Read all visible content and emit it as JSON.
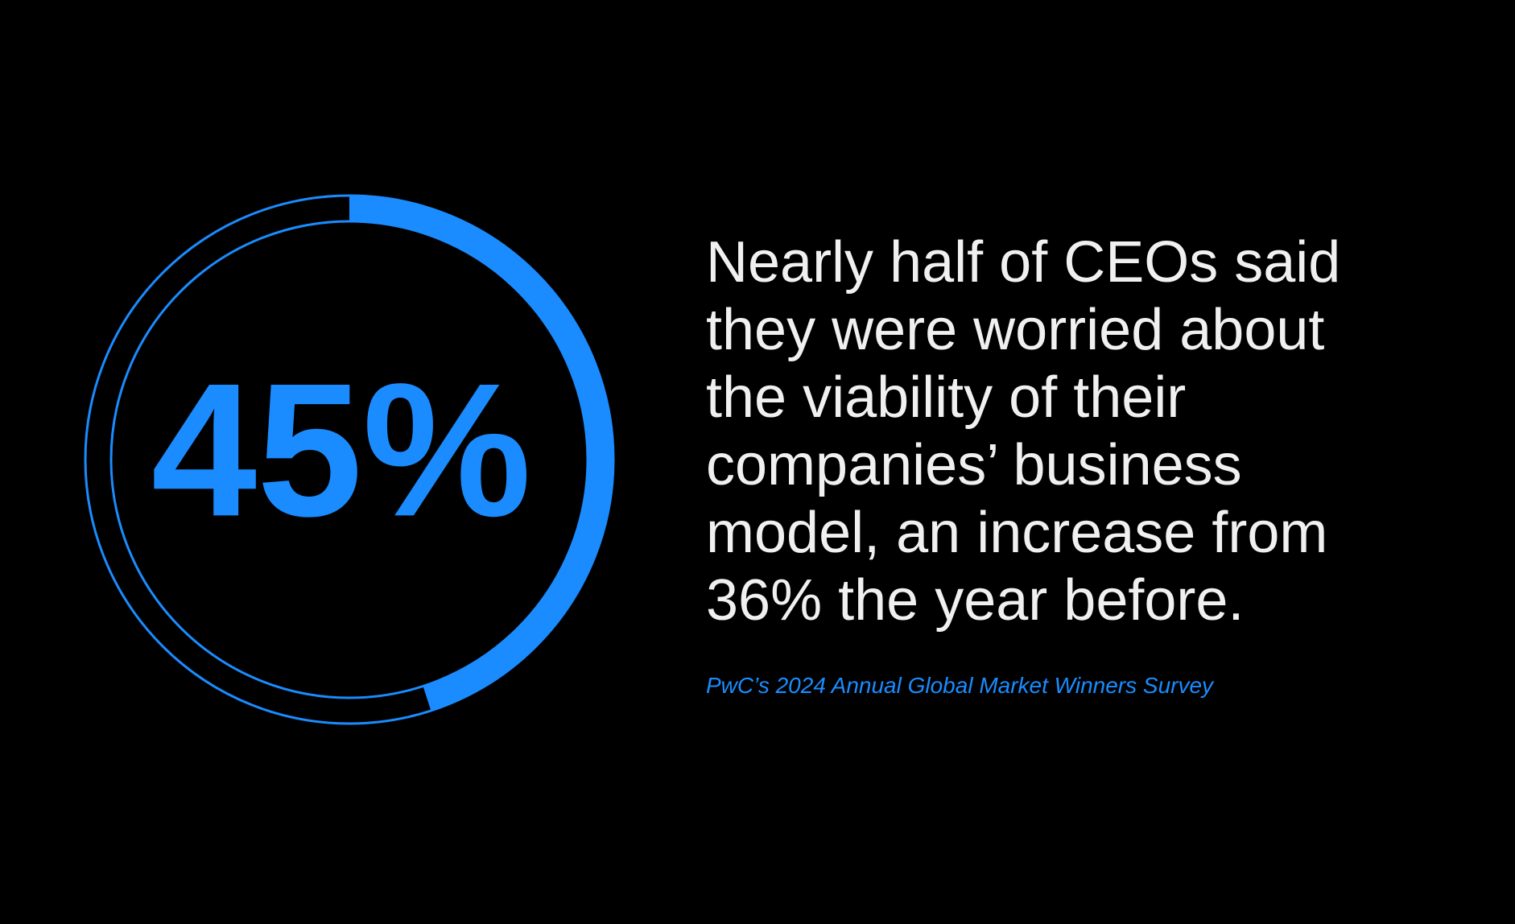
{
  "chart_data": {
    "type": "progress-ring",
    "values": [
      45
    ],
    "value_labels": [
      "45%"
    ],
    "ylim": [
      0,
      100
    ],
    "color": "#1a8cff",
    "annotation": [
      "Nearly half of CEOs said",
      "they were worried about",
      "the viability of their",
      "companies’ business",
      "model, an increase from",
      "36% the year before."
    ],
    "source": "PwC’s 2024 Annual Global Market Winners Survey"
  }
}
